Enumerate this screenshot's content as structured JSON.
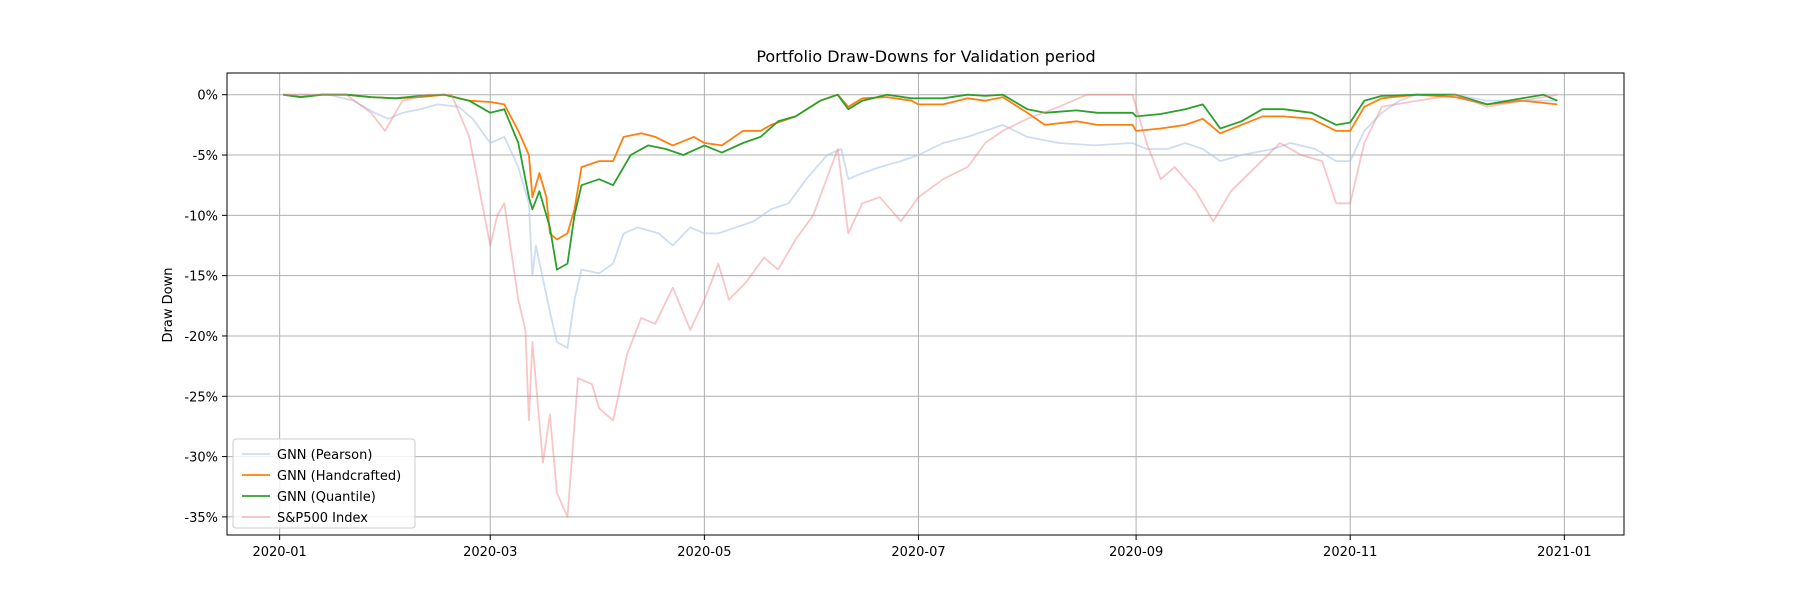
{
  "chart_data": {
    "type": "line",
    "title": "Portfolio Draw-Downs for Validation period",
    "xlabel": "",
    "ylabel": "Draw Down",
    "x_range": [
      "2019-12-17",
      "2021-01-18"
    ],
    "ylim": [
      -36.5,
      1.8
    ],
    "x_ticks": [
      "2020-01",
      "2020-03",
      "2020-05",
      "2020-07",
      "2020-09",
      "2020-11",
      "2021-01"
    ],
    "x_tick_dates": [
      "2020-01-01",
      "2020-03-01",
      "2020-05-01",
      "2020-07-01",
      "2020-09-01",
      "2020-11-01",
      "2021-01-01"
    ],
    "y_ticks": [
      0,
      -5,
      -10,
      -15,
      -20,
      -25,
      -30,
      -35
    ],
    "y_tick_labels": [
      "0%",
      "-5%",
      "-10%",
      "-15%",
      "-20%",
      "-25%",
      "-30%",
      "-35%"
    ],
    "grid": true,
    "legend_position": "lower-left",
    "series": [
      {
        "name": "GNN (Pearson)",
        "color": "#aec7e8",
        "opacity": 0.6,
        "points": [
          [
            "2020-01-02",
            0
          ],
          [
            "2020-01-15",
            0
          ],
          [
            "2020-01-22",
            -0.5
          ],
          [
            "2020-01-28",
            -1.5
          ],
          [
            "2020-02-01",
            -2
          ],
          [
            "2020-02-05",
            -1.5
          ],
          [
            "2020-02-10",
            -1.2
          ],
          [
            "2020-02-15",
            -0.8
          ],
          [
            "2020-02-21",
            -1
          ],
          [
            "2020-02-25",
            -2
          ],
          [
            "2020-03-01",
            -4
          ],
          [
            "2020-03-05",
            -3.5
          ],
          [
            "2020-03-09",
            -6
          ],
          [
            "2020-03-12",
            -9
          ],
          [
            "2020-03-13",
            -15
          ],
          [
            "2020-03-14",
            -12.5
          ],
          [
            "2020-03-18",
            -18
          ],
          [
            "2020-03-20",
            -20.5
          ],
          [
            "2020-03-23",
            -21
          ],
          [
            "2020-03-25",
            -17
          ],
          [
            "2020-03-27",
            -14.5
          ],
          [
            "2020-04-01",
            -14.8
          ],
          [
            "2020-04-05",
            -14
          ],
          [
            "2020-04-08",
            -11.5
          ],
          [
            "2020-04-12",
            -11
          ],
          [
            "2020-04-18",
            -11.5
          ],
          [
            "2020-04-22",
            -12.5
          ],
          [
            "2020-04-27",
            -11
          ],
          [
            "2020-05-01",
            -11.5
          ],
          [
            "2020-05-05",
            -11.5
          ],
          [
            "2020-05-10",
            -11
          ],
          [
            "2020-05-15",
            -10.5
          ],
          [
            "2020-05-20",
            -9.5
          ],
          [
            "2020-05-25",
            -9
          ],
          [
            "2020-05-30",
            -7
          ],
          [
            "2020-06-05",
            -5
          ],
          [
            "2020-06-09",
            -4.5
          ],
          [
            "2020-06-11",
            -7
          ],
          [
            "2020-06-15",
            -6.5
          ],
          [
            "2020-06-20",
            -6
          ],
          [
            "2020-06-26",
            -5.5
          ],
          [
            "2020-07-01",
            -5
          ],
          [
            "2020-07-08",
            -4
          ],
          [
            "2020-07-15",
            -3.5
          ],
          [
            "2020-07-20",
            -3
          ],
          [
            "2020-07-25",
            -2.5
          ],
          [
            "2020-08-01",
            -3.5
          ],
          [
            "2020-08-10",
            -4
          ],
          [
            "2020-08-20",
            -4.2
          ],
          [
            "2020-08-31",
            -4
          ],
          [
            "2020-09-04",
            -4.5
          ],
          [
            "2020-09-10",
            -4.5
          ],
          [
            "2020-09-15",
            -4
          ],
          [
            "2020-09-20",
            -4.5
          ],
          [
            "2020-09-25",
            -5.5
          ],
          [
            "2020-10-01",
            -5
          ],
          [
            "2020-10-10",
            -4.5
          ],
          [
            "2020-10-15",
            -4
          ],
          [
            "2020-10-22",
            -4.5
          ],
          [
            "2020-10-28",
            -5.5
          ],
          [
            "2020-11-01",
            -5.5
          ],
          [
            "2020-11-05",
            -3
          ],
          [
            "2020-11-10",
            -1.5
          ],
          [
            "2020-11-15",
            -0.5
          ],
          [
            "2020-11-20",
            0
          ],
          [
            "2020-12-01",
            0
          ],
          [
            "2020-12-10",
            -0.5
          ],
          [
            "2020-12-20",
            -0.5
          ],
          [
            "2020-12-30",
            -0.5
          ]
        ]
      },
      {
        "name": "GNN (Handcrafted)",
        "color": "#ff7f0e",
        "opacity": 1,
        "points": [
          [
            "2020-01-02",
            0
          ],
          [
            "2020-01-07",
            -0.2
          ],
          [
            "2020-01-13",
            0
          ],
          [
            "2020-01-20",
            0
          ],
          [
            "2020-01-27",
            -0.2
          ],
          [
            "2020-02-03",
            -0.3
          ],
          [
            "2020-02-10",
            -0.2
          ],
          [
            "2020-02-17",
            0
          ],
          [
            "2020-02-24",
            -0.5
          ],
          [
            "2020-03-01",
            -0.6
          ],
          [
            "2020-03-05",
            -0.8
          ],
          [
            "2020-03-09",
            -3
          ],
          [
            "2020-03-12",
            -5
          ],
          [
            "2020-03-13",
            -8.5
          ],
          [
            "2020-03-15",
            -6.5
          ],
          [
            "2020-03-17",
            -8.5
          ],
          [
            "2020-03-18",
            -11.5
          ],
          [
            "2020-03-20",
            -12
          ],
          [
            "2020-03-23",
            -11.5
          ],
          [
            "2020-03-25",
            -9.5
          ],
          [
            "2020-03-27",
            -6
          ],
          [
            "2020-04-01",
            -5.5
          ],
          [
            "2020-04-05",
            -5.5
          ],
          [
            "2020-04-08",
            -3.5
          ],
          [
            "2020-04-13",
            -3.2
          ],
          [
            "2020-04-17",
            -3.5
          ],
          [
            "2020-04-22",
            -4.2
          ],
          [
            "2020-04-28",
            -3.5
          ],
          [
            "2020-05-01",
            -4
          ],
          [
            "2020-05-06",
            -4.2
          ],
          [
            "2020-05-12",
            -3
          ],
          [
            "2020-05-17",
            -3
          ],
          [
            "2020-05-20",
            -2.5
          ],
          [
            "2020-05-27",
            -1.8
          ],
          [
            "2020-06-03",
            -0.5
          ],
          [
            "2020-06-08",
            0
          ],
          [
            "2020-06-11",
            -1
          ],
          [
            "2020-06-15",
            -0.3
          ],
          [
            "2020-06-22",
            -0.2
          ],
          [
            "2020-06-29",
            -0.5
          ],
          [
            "2020-07-01",
            -0.8
          ],
          [
            "2020-07-08",
            -0.8
          ],
          [
            "2020-07-15",
            -0.3
          ],
          [
            "2020-07-20",
            -0.5
          ],
          [
            "2020-07-25",
            -0.2
          ],
          [
            "2020-08-01",
            -1.5
          ],
          [
            "2020-08-06",
            -2.5
          ],
          [
            "2020-08-15",
            -2.2
          ],
          [
            "2020-08-21",
            -2.5
          ],
          [
            "2020-08-31",
            -2.5
          ],
          [
            "2020-09-01",
            -3
          ],
          [
            "2020-09-08",
            -2.8
          ],
          [
            "2020-09-15",
            -2.5
          ],
          [
            "2020-09-20",
            -2
          ],
          [
            "2020-09-25",
            -3.2
          ],
          [
            "2020-10-01",
            -2.5
          ],
          [
            "2020-10-07",
            -1.8
          ],
          [
            "2020-10-13",
            -1.8
          ],
          [
            "2020-10-21",
            -2
          ],
          [
            "2020-10-28",
            -3
          ],
          [
            "2020-11-01",
            -3
          ],
          [
            "2020-11-05",
            -1
          ],
          [
            "2020-11-10",
            -0.3
          ],
          [
            "2020-11-20",
            0
          ],
          [
            "2020-12-01",
            -0.2
          ],
          [
            "2020-12-10",
            -0.8
          ],
          [
            "2020-12-20",
            -0.5
          ],
          [
            "2020-12-30",
            -0.8
          ]
        ]
      },
      {
        "name": "GNN (Quantile)",
        "color": "#2ca02c",
        "opacity": 1,
        "points": [
          [
            "2020-01-02",
            0
          ],
          [
            "2020-01-07",
            -0.2
          ],
          [
            "2020-01-13",
            0
          ],
          [
            "2020-01-20",
            0
          ],
          [
            "2020-01-27",
            -0.2
          ],
          [
            "2020-02-03",
            -0.3
          ],
          [
            "2020-02-10",
            -0.1
          ],
          [
            "2020-02-17",
            0
          ],
          [
            "2020-02-24",
            -0.5
          ],
          [
            "2020-03-01",
            -1.5
          ],
          [
            "2020-03-05",
            -1.2
          ],
          [
            "2020-03-09",
            -4
          ],
          [
            "2020-03-12",
            -8.5
          ],
          [
            "2020-03-13",
            -9.5
          ],
          [
            "2020-03-15",
            -8
          ],
          [
            "2020-03-18",
            -11
          ],
          [
            "2020-03-20",
            -14.5
          ],
          [
            "2020-03-23",
            -14
          ],
          [
            "2020-03-25",
            -10
          ],
          [
            "2020-03-27",
            -7.5
          ],
          [
            "2020-04-01",
            -7
          ],
          [
            "2020-04-05",
            -7.5
          ],
          [
            "2020-04-10",
            -5
          ],
          [
            "2020-04-15",
            -4.2
          ],
          [
            "2020-04-20",
            -4.5
          ],
          [
            "2020-04-25",
            -5
          ],
          [
            "2020-05-01",
            -4.2
          ],
          [
            "2020-05-06",
            -4.8
          ],
          [
            "2020-05-12",
            -4
          ],
          [
            "2020-05-17",
            -3.5
          ],
          [
            "2020-05-22",
            -2.2
          ],
          [
            "2020-05-27",
            -1.8
          ],
          [
            "2020-06-03",
            -0.5
          ],
          [
            "2020-06-08",
            0
          ],
          [
            "2020-06-11",
            -1.2
          ],
          [
            "2020-06-15",
            -0.5
          ],
          [
            "2020-06-22",
            0
          ],
          [
            "2020-06-29",
            -0.3
          ],
          [
            "2020-07-08",
            -0.3
          ],
          [
            "2020-07-15",
            0
          ],
          [
            "2020-07-20",
            -0.1
          ],
          [
            "2020-07-25",
            0
          ],
          [
            "2020-08-01",
            -1.2
          ],
          [
            "2020-08-06",
            -1.5
          ],
          [
            "2020-08-15",
            -1.3
          ],
          [
            "2020-08-21",
            -1.5
          ],
          [
            "2020-08-31",
            -1.5
          ],
          [
            "2020-09-01",
            -1.8
          ],
          [
            "2020-09-08",
            -1.6
          ],
          [
            "2020-09-15",
            -1.2
          ],
          [
            "2020-09-20",
            -0.8
          ],
          [
            "2020-09-25",
            -2.8
          ],
          [
            "2020-10-01",
            -2.2
          ],
          [
            "2020-10-07",
            -1.2
          ],
          [
            "2020-10-13",
            -1.2
          ],
          [
            "2020-10-21",
            -1.5
          ],
          [
            "2020-10-28",
            -2.5
          ],
          [
            "2020-11-01",
            -2.3
          ],
          [
            "2020-11-05",
            -0.5
          ],
          [
            "2020-11-10",
            -0.1
          ],
          [
            "2020-11-20",
            0
          ],
          [
            "2020-12-01",
            0
          ],
          [
            "2020-12-10",
            -0.8
          ],
          [
            "2020-12-20",
            -0.3
          ],
          [
            "2020-12-26",
            0
          ],
          [
            "2020-12-30",
            -0.5
          ]
        ]
      },
      {
        "name": "S&P500 Index",
        "color": "#f08080",
        "opacity": 0.45,
        "points": [
          [
            "2020-01-02",
            0
          ],
          [
            "2020-01-20",
            0
          ],
          [
            "2020-01-27",
            -1.5
          ],
          [
            "2020-01-31",
            -3
          ],
          [
            "2020-02-05",
            -0.5
          ],
          [
            "2020-02-12",
            0
          ],
          [
            "2020-02-19",
            0
          ],
          [
            "2020-02-24",
            -3.5
          ],
          [
            "2020-02-27",
            -8
          ],
          [
            "2020-03-01",
            -12.5
          ],
          [
            "2020-03-03",
            -10
          ],
          [
            "2020-03-05",
            -9
          ],
          [
            "2020-03-09",
            -17
          ],
          [
            "2020-03-11",
            -19.5
          ],
          [
            "2020-03-12",
            -27
          ],
          [
            "2020-03-13",
            -20.5
          ],
          [
            "2020-03-16",
            -30.5
          ],
          [
            "2020-03-18",
            -26.5
          ],
          [
            "2020-03-20",
            -33
          ],
          [
            "2020-03-23",
            -35
          ],
          [
            "2020-03-26",
            -23.5
          ],
          [
            "2020-03-30",
            -24
          ],
          [
            "2020-04-01",
            -26
          ],
          [
            "2020-04-05",
            -27
          ],
          [
            "2020-04-09",
            -21.5
          ],
          [
            "2020-04-13",
            -18.5
          ],
          [
            "2020-04-17",
            -19
          ],
          [
            "2020-04-22",
            -16
          ],
          [
            "2020-04-27",
            -19.5
          ],
          [
            "2020-05-01",
            -17
          ],
          [
            "2020-05-05",
            -14
          ],
          [
            "2020-05-08",
            -17
          ],
          [
            "2020-05-13",
            -15.5
          ],
          [
            "2020-05-18",
            -13.5
          ],
          [
            "2020-05-22",
            -14.5
          ],
          [
            "2020-05-27",
            -12
          ],
          [
            "2020-06-01",
            -10
          ],
          [
            "2020-06-08",
            -4.5
          ],
          [
            "2020-06-11",
            -11.5
          ],
          [
            "2020-06-15",
            -9
          ],
          [
            "2020-06-20",
            -8.5
          ],
          [
            "2020-06-26",
            -10.5
          ],
          [
            "2020-07-01",
            -8.5
          ],
          [
            "2020-07-08",
            -7
          ],
          [
            "2020-07-15",
            -6
          ],
          [
            "2020-07-20",
            -4
          ],
          [
            "2020-07-25",
            -3
          ],
          [
            "2020-08-01",
            -2
          ],
          [
            "2020-08-10",
            -1
          ],
          [
            "2020-08-18",
            0
          ],
          [
            "2020-08-31",
            0
          ],
          [
            "2020-09-04",
            -4
          ],
          [
            "2020-09-08",
            -7
          ],
          [
            "2020-09-12",
            -6
          ],
          [
            "2020-09-18",
            -8
          ],
          [
            "2020-09-23",
            -10.5
          ],
          [
            "2020-09-28",
            -8
          ],
          [
            "2020-10-05",
            -6
          ],
          [
            "2020-10-12",
            -4
          ],
          [
            "2020-10-18",
            -5
          ],
          [
            "2020-10-24",
            -5.5
          ],
          [
            "2020-10-28",
            -9
          ],
          [
            "2020-11-01",
            -9
          ],
          [
            "2020-11-05",
            -4
          ],
          [
            "2020-11-10",
            -1
          ],
          [
            "2020-11-20",
            -0.5
          ],
          [
            "2020-12-01",
            0
          ],
          [
            "2020-12-10",
            -1
          ],
          [
            "2020-12-20",
            -0.5
          ],
          [
            "2020-12-30",
            0
          ]
        ]
      }
    ]
  }
}
